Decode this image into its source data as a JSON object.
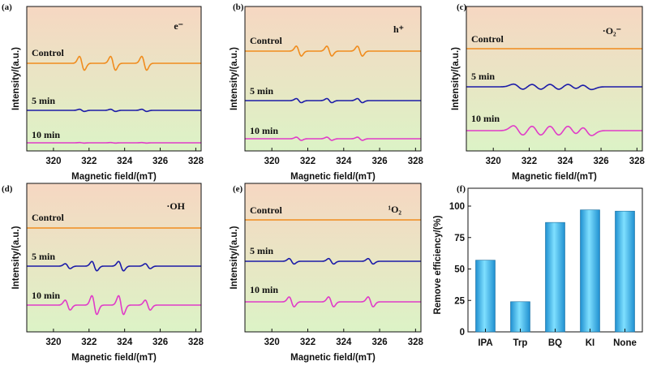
{
  "colors": {
    "control": "#f08c1e",
    "min5": "#1c1ca8",
    "min10": "#e03cc8",
    "bar": "#36b4e6",
    "bg_top": "#f6d7c2",
    "bg_bottom": "#dcf3c6"
  },
  "chart_data": [
    {
      "type": "line",
      "panel_label": "(a)",
      "species": "e⁻",
      "xlabel": "Magnetic field/(mT)",
      "ylabel": "Intensity/(a.u.)",
      "xlim": [
        318.5,
        328.3
      ],
      "xticks": [
        "320",
        "322",
        "324",
        "326",
        "328"
      ],
      "signal": "triplet",
      "series": [
        {
          "name": "Control",
          "peaks": [
            321.6,
            323.35,
            325.1
          ],
          "amplitude": 1.0
        },
        {
          "name": "5 min",
          "peaks": [
            321.6,
            323.35,
            325.1
          ],
          "amplitude": 0.22
        },
        {
          "name": "10 min",
          "peaks": [
            321.6,
            323.35,
            325.1
          ],
          "amplitude": 0.05
        }
      ]
    },
    {
      "type": "line",
      "panel_label": "(b)",
      "species": "h⁺",
      "xlabel": "Magnetic field/(mT)",
      "ylabel": "Intensity/(a.u.)",
      "xlim": [
        318.5,
        328.3
      ],
      "xticks": [
        "320",
        "322",
        "324",
        "326",
        "328"
      ],
      "signal": "triplet",
      "series": [
        {
          "name": "Control",
          "peaks": [
            321.5,
            323.2,
            324.9
          ],
          "amplitude": 1.0
        },
        {
          "name": "5 min",
          "peaks": [
            321.5,
            323.2,
            324.9
          ],
          "amplitude": 0.42
        },
        {
          "name": "10 min",
          "peaks": [
            321.5,
            323.2,
            324.9
          ],
          "amplitude": 0.32
        }
      ]
    },
    {
      "type": "line",
      "panel_label": "(c)",
      "species": "·O₂⁻",
      "xlabel": "Magnetic field/(mT)",
      "ylabel": "Intensity/(a.u.)",
      "xlim": [
        318.5,
        328.3
      ],
      "xticks": [
        "320",
        "322",
        "324",
        "326",
        "328"
      ],
      "signal": "superoxide",
      "series": [
        {
          "name": "Control",
          "peaks": [],
          "amplitude": 0.0
        },
        {
          "name": "5 min",
          "peaks": [
            321.4,
            322.4,
            323.4,
            324.4,
            325.2
          ],
          "amplitude": 0.55
        },
        {
          "name": "10 min",
          "peaks": [
            321.4,
            322.4,
            323.4,
            324.4,
            325.2
          ],
          "amplitude": 1.0
        }
      ]
    },
    {
      "type": "line",
      "panel_label": "(d)",
      "species": "·OH",
      "xlabel": "Magnetic field/(mT)",
      "ylabel": "Intensity/(a.u.)",
      "xlim": [
        318.5,
        328.3
      ],
      "xticks": [
        "320",
        "322",
        "324",
        "326",
        "328"
      ],
      "signal": "quartet",
      "series": [
        {
          "name": "Control",
          "peaks": [],
          "amplitude": 0.0
        },
        {
          "name": "5 min",
          "peaks": [
            320.8,
            322.3,
            323.8,
            325.3
          ],
          "amplitude": 0.5
        },
        {
          "name": "10 min",
          "peaks": [
            320.8,
            322.3,
            323.8,
            325.3
          ],
          "amplitude": 1.0
        }
      ]
    },
    {
      "type": "line",
      "panel_label": "(e)",
      "species": "¹O₂",
      "xlabel": "Magnetic field/(mT)",
      "ylabel": "Intensity/(a.u.)",
      "xlim": [
        318.5,
        328.3
      ],
      "xticks": [
        "320",
        "322",
        "324",
        "326",
        "328"
      ],
      "signal": "triplet",
      "series": [
        {
          "name": "Control",
          "peaks": [],
          "amplitude": 0.0
        },
        {
          "name": "5 min",
          "peaks": [
            321.1,
            323.3,
            325.5
          ],
          "amplitude": 0.55
        },
        {
          "name": "10 min",
          "peaks": [
            321.1,
            323.3,
            325.5
          ],
          "amplitude": 1.0
        }
      ]
    },
    {
      "type": "bar",
      "panel_label": "(f)",
      "categories": [
        "IPA",
        "Trp",
        "BQ",
        "KI",
        "None"
      ],
      "values": [
        57,
        24,
        87,
        97,
        96
      ],
      "ylabel": "Remove efficiency/(%)",
      "ylim": [
        0,
        100
      ],
      "yticks": [
        "0",
        "25",
        "50",
        "75",
        "100"
      ]
    }
  ]
}
